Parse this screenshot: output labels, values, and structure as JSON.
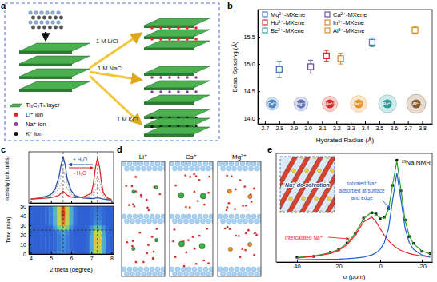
{
  "panel_labels": [
    "a",
    "b",
    "c",
    "d",
    "e"
  ],
  "diagram_a": {
    "legend": [
      {
        "label": "Ti₃C₂Tₓ layer",
        "color": "#4caf50"
      },
      {
        "label": "Li⁺ ion",
        "color": "#e8262d"
      },
      {
        "label": "Na⁺ ion",
        "color": "#8e3b9e"
      },
      {
        "label": "K⁺ ion",
        "color": "#111111"
      }
    ],
    "arrows": [
      "1 M LiCl",
      "1 M NaCl",
      "1 M KCl"
    ]
  },
  "chart_data": [
    {
      "type": "scatter",
      "xlabel": "Hydrated Radius (Å)",
      "ylabel": "Basal Spacing (Å)",
      "xlim": [
        2.65,
        3.87
      ],
      "xticks": [
        2.7,
        2.8,
        2.9,
        {
          "value": 3,
          "label": "3.0"
        },
        3.1,
        3.2,
        3.3,
        3.4,
        3.5,
        3.6,
        3.7,
        3.8
      ],
      "ylim": [
        13.9,
        16.0
      ],
      "yticks": [
        {
          "value": 14,
          "label": "14.0"
        },
        14.5,
        {
          "value": 15,
          "label": "15.0"
        },
        15.5
      ],
      "legend": "top-left",
      "series": [
        {
          "name": "Mg²⁺-MXene",
          "color": "#3f78c8",
          "marker": "square",
          "x": [
            2.8
          ],
          "values": [
            14.9
          ],
          "error": [
            0.15
          ]
        },
        {
          "name": "Ca²⁺-MXene",
          "color": "#6b4fa6",
          "marker": "square",
          "x": [
            3.02
          ],
          "values": [
            14.95
          ],
          "error": [
            0.12
          ]
        },
        {
          "name": "Ho³⁺-MXene",
          "color": "#d62f2f",
          "marker": "square",
          "x": [
            3.13
          ],
          "values": [
            15.15
          ],
          "error": [
            0.1
          ]
        },
        {
          "name": "In³⁺-MXene",
          "color": "#e0892b",
          "marker": "square",
          "x": [
            3.23
          ],
          "values": [
            15.1
          ],
          "error": [
            0.1
          ]
        },
        {
          "name": "Be²⁺-MXene",
          "color": "#2a9fa6",
          "marker": "square",
          "x": [
            3.45
          ],
          "values": [
            15.4
          ],
          "error": [
            0.08
          ]
        },
        {
          "name": "Al³⁺-MXene",
          "color": "#d9902a",
          "marker": "square",
          "x": [
            3.75
          ],
          "values": [
            15.62
          ],
          "error": [
            0.07
          ]
        }
      ],
      "ion_icons": [
        {
          "label": "Ca²⁺",
          "color": "#4f86c6"
        },
        {
          "label": "Mg²⁺",
          "color": "#5d6fb8"
        },
        {
          "label": "Ho³⁺",
          "color": "#d0312d"
        },
        {
          "label": "In³⁺",
          "color": "#e8902a"
        },
        {
          "label": "Be²⁺",
          "color": "#2a9a9a"
        },
        {
          "label": "Al³⁺",
          "color": "#8a5a2a"
        }
      ]
    },
    {
      "type": "line",
      "ylabel": "Intensity (arb. units)",
      "xlim": [
        3.9,
        8.1
      ],
      "xticks": [
        4,
        5,
        6,
        7,
        8
      ],
      "ylim": [
        0,
        1.05
      ],
      "tick_labels": false,
      "x": [
        4,
        4.4,
        4.8,
        5,
        5.2,
        5.4,
        5.5,
        5.6,
        5.7,
        5.8,
        6,
        6.2,
        6.6,
        7,
        7.1,
        7.2,
        7.3,
        7.4,
        7.5,
        7.6,
        7.8,
        8
      ],
      "series": [
        {
          "color": "#2b4ea8",
          "values": [
            0.08,
            0.1,
            0.14,
            0.18,
            0.28,
            0.55,
            0.78,
            0.95,
            0.78,
            0.5,
            0.25,
            0.15,
            0.1,
            0.09,
            0.09,
            0.1,
            0.1,
            0.1,
            0.09,
            0.08,
            0.07,
            0.06
          ]
        },
        {
          "color": "#8c8c8c",
          "line_style": "dashed",
          "values": [
            0.08,
            0.1,
            0.13,
            0.16,
            0.24,
            0.42,
            0.58,
            0.68,
            0.58,
            0.4,
            0.2,
            0.13,
            0.1,
            0.12,
            0.16,
            0.26,
            0.34,
            0.28,
            0.18,
            0.12,
            0.08,
            0.07
          ]
        },
        {
          "color": "#8c8c8c",
          "line_style": "dashed",
          "values": [
            0.08,
            0.09,
            0.12,
            0.14,
            0.2,
            0.3,
            0.4,
            0.46,
            0.4,
            0.3,
            0.17,
            0.12,
            0.11,
            0.15,
            0.25,
            0.42,
            0.55,
            0.45,
            0.28,
            0.16,
            0.09,
            0.07
          ]
        },
        {
          "color": "#d62728",
          "values": [
            0.08,
            0.09,
            0.1,
            0.11,
            0.13,
            0.16,
            0.2,
            0.24,
            0.2,
            0.16,
            0.12,
            0.11,
            0.12,
            0.2,
            0.4,
            0.72,
            0.92,
            0.75,
            0.42,
            0.2,
            0.1,
            0.07
          ]
        }
      ],
      "vlines": [
        5.6,
        7.3
      ],
      "annotations": [
        "+ H₂O",
        "- H₂O"
      ]
    },
    {
      "type": "heatmap",
      "xlabel": "2 theta (degree)",
      "ylabel": "Time (min)",
      "xlim": [
        3.9,
        8.1
      ],
      "xticks": [
        4,
        5,
        6,
        7,
        8
      ],
      "ylim": [
        0,
        50
      ],
      "yticks": [
        0,
        10,
        20,
        30,
        40,
        50
      ],
      "x_edges": [
        3.9,
        4.1,
        4.3,
        4.5,
        4.7,
        4.9,
        5.1,
        5.3,
        5.5,
        5.7,
        5.9,
        6.1,
        6.3,
        6.5,
        6.7,
        6.9,
        7.1,
        7.3,
        7.5,
        7.7,
        7.9,
        8.1
      ],
      "y_edges": [
        0,
        5,
        10,
        15,
        20,
        25,
        30,
        35,
        40,
        45,
        50
      ],
      "zlim": [
        0,
        1
      ],
      "cells": [
        [
          0.08,
          0.08,
          0.08,
          0.08,
          0.08,
          0.08,
          0.1,
          0.15,
          0.2,
          0.15,
          0.1,
          0.08,
          0.08,
          0.08,
          0.1,
          0.3,
          0.65,
          0.65,
          0.3,
          0.1,
          0.08
        ],
        [
          0.08,
          0.08,
          0.08,
          0.08,
          0.08,
          0.08,
          0.1,
          0.15,
          0.2,
          0.15,
          0.1,
          0.08,
          0.08,
          0.08,
          0.1,
          0.3,
          0.7,
          0.7,
          0.3,
          0.1,
          0.08
        ],
        [
          0.08,
          0.08,
          0.08,
          0.08,
          0.08,
          0.08,
          0.1,
          0.15,
          0.2,
          0.15,
          0.1,
          0.08,
          0.08,
          0.08,
          0.1,
          0.32,
          0.75,
          0.75,
          0.32,
          0.1,
          0.08
        ],
        [
          0.08,
          0.08,
          0.08,
          0.08,
          0.08,
          0.08,
          0.1,
          0.15,
          0.22,
          0.15,
          0.1,
          0.08,
          0.08,
          0.08,
          0.1,
          0.3,
          0.72,
          0.72,
          0.3,
          0.1,
          0.08
        ],
        [
          0.08,
          0.08,
          0.08,
          0.08,
          0.08,
          0.08,
          0.1,
          0.18,
          0.25,
          0.18,
          0.1,
          0.08,
          0.08,
          0.08,
          0.1,
          0.28,
          0.68,
          0.68,
          0.28,
          0.1,
          0.08
        ],
        [
          0.08,
          0.08,
          0.08,
          0.08,
          0.08,
          0.1,
          0.25,
          0.5,
          0.6,
          0.5,
          0.2,
          0.1,
          0.08,
          0.08,
          0.1,
          0.2,
          0.4,
          0.4,
          0.2,
          0.1,
          0.08
        ],
        [
          0.08,
          0.08,
          0.08,
          0.08,
          0.1,
          0.15,
          0.35,
          0.68,
          0.9,
          0.68,
          0.3,
          0.12,
          0.08,
          0.08,
          0.08,
          0.1,
          0.18,
          0.18,
          0.1,
          0.08,
          0.08
        ],
        [
          0.08,
          0.08,
          0.08,
          0.08,
          0.1,
          0.15,
          0.35,
          0.7,
          0.95,
          0.7,
          0.3,
          0.12,
          0.08,
          0.08,
          0.08,
          0.1,
          0.15,
          0.15,
          0.1,
          0.08,
          0.08
        ],
        [
          0.08,
          0.08,
          0.08,
          0.08,
          0.1,
          0.16,
          0.38,
          0.72,
          1,
          0.72,
          0.32,
          0.12,
          0.08,
          0.08,
          0.08,
          0.1,
          0.14,
          0.14,
          0.1,
          0.08,
          0.08
        ],
        [
          0.08,
          0.08,
          0.08,
          0.08,
          0.1,
          0.15,
          0.35,
          0.7,
          0.95,
          0.7,
          0.3,
          0.12,
          0.08,
          0.08,
          0.08,
          0.1,
          0.13,
          0.13,
          0.1,
          0.08,
          0.08
        ]
      ],
      "hlines": [
        25
      ],
      "vlines": [
        5.6,
        7.3
      ]
    },
    {
      "type": "line",
      "title": "²³Na NMR",
      "xlabel": "σ (ppm)",
      "xlim": [
        50,
        -25
      ],
      "xticks": [
        40,
        20,
        0,
        -20
      ],
      "ylim": [
        0,
        1.12
      ],
      "tick_labels": "x",
      "x": [
        40,
        32,
        24,
        20,
        16,
        12,
        8,
        4,
        2,
        0,
        -2,
        -4,
        -6,
        -8,
        -10,
        -12,
        -14,
        -16,
        -20,
        -24
      ],
      "series": [
        {
          "color": "#111111",
          "marker": "square",
          "line_style": "none",
          "values": [
            0.05,
            0.058,
            0.1,
            0.126,
            0.196,
            0.29,
            0.452,
            0.508,
            0.495,
            0.448,
            0.462,
            0.55,
            0.79,
            1.05,
            0.735,
            0.432,
            0.262,
            0.192,
            0.11,
            0.086
          ]
        },
        {
          "color": "#2ca02c",
          "values": [
            0.046,
            0.061,
            0.096,
            0.13,
            0.19,
            0.295,
            0.445,
            0.516,
            0.488,
            0.455,
            0.455,
            0.543,
            0.799,
            1.044,
            0.743,
            0.426,
            0.268,
            0.188,
            0.115,
            0.083
          ]
        },
        {
          "color": "#e8262d",
          "values": [
            0.042,
            0.056,
            0.088,
            0.12,
            0.176,
            0.275,
            0.414,
            0.463,
            0.414,
            0.344,
            0.275,
            0.219,
            0.176,
            0.144,
            0.12,
            0.102,
            0.088,
            0.077,
            0.062,
            0.052
          ]
        },
        {
          "color": "#1f5fd0",
          "values": [
            0.024,
            0.025,
            0.028,
            0.03,
            0.034,
            0.04,
            0.051,
            0.073,
            0.094,
            0.131,
            0.2,
            0.344,
            0.643,
            0.92,
            0.643,
            0.344,
            0.2,
            0.131,
            0.073,
            0.051
          ]
        }
      ],
      "annotations": {
        "inset": "Na⁺ de-solvation",
        "solvated": [
          "solvated Na⁺",
          "adsorbed at surface",
          "and edge"
        ],
        "intercalated": "intercalated Na⁺"
      }
    }
  ],
  "diagram_d": {
    "panels": [
      {
        "label": "Li⁺",
        "ion_color": "#3cb043"
      },
      {
        "label": "Cs⁺",
        "ion_color": "#3cb043"
      },
      {
        "label": "Mg²⁺",
        "ion_color": "#e8902a"
      }
    ]
  }
}
